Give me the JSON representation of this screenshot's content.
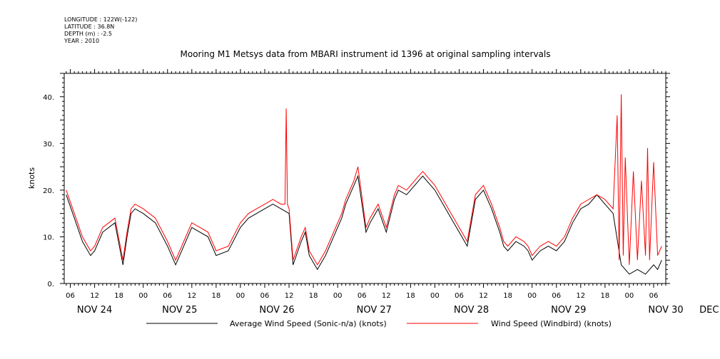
{
  "meta": {
    "longitude": "LONGITUDE : 122W(-122)",
    "latitude": "LATITUDE : 36.8N",
    "depth": "DEPTH (m) : -2.5",
    "year": "YEAR : 2010"
  },
  "chart_data": {
    "type": "line",
    "title": "Mooring M1 Metsys data from MBARI instrument id 1396 at original sampling intervals",
    "ylabel": "knots",
    "xlabel": "",
    "ylim": [
      0,
      45
    ],
    "yticks": [
      0,
      10,
      20,
      30,
      40
    ],
    "ytick_labels": [
      "0.",
      "10.",
      "20.",
      "30.",
      "40."
    ],
    "x_unit": "hours since 2010-11-24 00:00 (UTC)",
    "xlim": [
      4.5,
      153
    ],
    "xticks": [
      6,
      12,
      18,
      24,
      30,
      36,
      42,
      48,
      54,
      60,
      66,
      72,
      78,
      84,
      90,
      96,
      102,
      108,
      114,
      120,
      126,
      132,
      138,
      144,
      150
    ],
    "xtick_labels": [
      "06",
      "12",
      "18",
      "00",
      "06",
      "12",
      "18",
      "00",
      "06",
      "12",
      "18",
      "00",
      "06",
      "12",
      "18",
      "00",
      "06",
      "12",
      "18",
      "00",
      "06",
      "12",
      "18",
      "00",
      "06"
    ],
    "day_labels": [
      {
        "text": "NOV 24",
        "x": 12
      },
      {
        "text": "NOV 25",
        "x": 33
      },
      {
        "text": "NOV 26",
        "x": 57
      },
      {
        "text": "NOV 27",
        "x": 81
      },
      {
        "text": "NOV 28",
        "x": 105
      },
      {
        "text": "NOV 29",
        "x": 129
      },
      {
        "text": "NOV 30",
        "x": 153
      },
      {
        "text": "DEC  1",
        "x": 168
      }
    ],
    "grid": false,
    "legend": "bottom",
    "series": [
      {
        "name": "Average Wind Speed (Sonic-n/a) (knots)",
        "color": "#000000",
        "x": [
          5,
          7,
          9,
          11,
          12,
          14,
          17,
          19,
          20,
          21,
          22,
          24,
          27,
          30,
          32,
          34,
          36,
          38,
          40,
          42,
          45,
          48,
          50,
          52,
          54,
          56,
          58,
          60,
          61,
          63,
          64,
          65,
          67,
          69,
          71,
          73,
          74,
          76,
          77,
          79,
          80,
          82,
          84,
          86,
          87,
          89,
          90,
          92,
          93,
          94,
          96,
          98,
          100,
          102,
          104,
          106,
          108,
          110,
          112,
          113,
          114,
          116,
          118,
          119,
          120,
          122,
          124,
          126,
          128,
          130,
          132,
          134,
          136,
          138,
          140,
          142,
          144,
          146,
          148,
          149,
          150,
          151,
          152
        ],
        "values": [
          19,
          14,
          9,
          6,
          7,
          11,
          13,
          4,
          10,
          15,
          16,
          15,
          13,
          8,
          4,
          8,
          12,
          11,
          10,
          6,
          7,
          12,
          14,
          15,
          16,
          17,
          16,
          15,
          4,
          9,
          11,
          6,
          3,
          6,
          10,
          14,
          17,
          21,
          23,
          11,
          13,
          16,
          11,
          18,
          20,
          19,
          20,
          22,
          23,
          22,
          20,
          17,
          14,
          11,
          8,
          18,
          20,
          16,
          11,
          8,
          7,
          9,
          8,
          7,
          5,
          7,
          8,
          7,
          9,
          13,
          16,
          17,
          19,
          17,
          15,
          4,
          2,
          3,
          2,
          3,
          4,
          3,
          5
        ]
      },
      {
        "name": "Wind Speed (Windbird) (knots)",
        "color": "#ff0000",
        "x": [
          5,
          7,
          9,
          11,
          12,
          14,
          17,
          19,
          20,
          21,
          22,
          24,
          27,
          30,
          32,
          34,
          36,
          38,
          40,
          42,
          45,
          48,
          50,
          52,
          54,
          56,
          58,
          59,
          59.3,
          59.6,
          60,
          61,
          63,
          64,
          65,
          67,
          69,
          71,
          73,
          74,
          76,
          77,
          79,
          80,
          82,
          84,
          86,
          87,
          89,
          90,
          92,
          93,
          94,
          96,
          98,
          100,
          102,
          104,
          106,
          108,
          110,
          112,
          113,
          114,
          116,
          118,
          119,
          120,
          122,
          124,
          126,
          128,
          130,
          132,
          134,
          136,
          138,
          140,
          141,
          141.5,
          142,
          142.5,
          143,
          144,
          145,
          146,
          147,
          148,
          148.5,
          149,
          150,
          151,
          152
        ],
        "values": [
          20,
          15,
          10,
          7,
          8,
          12,
          14,
          5,
          11,
          16,
          17,
          16,
          14,
          9,
          5,
          9,
          13,
          12,
          11,
          7,
          8,
          13,
          15,
          16,
          17,
          18,
          17,
          17,
          37.5,
          17,
          16,
          5,
          10,
          12,
          7,
          4,
          7,
          11,
          15,
          18,
          22,
          25,
          12,
          14,
          17,
          12,
          19,
          21,
          20,
          21,
          23,
          24,
          23,
          21,
          18,
          15,
          12,
          9,
          19,
          21,
          17,
          12,
          9,
          8,
          10,
          9,
          8,
          6,
          8,
          9,
          8,
          10,
          14,
          17,
          18,
          19,
          18,
          16,
          36,
          5,
          40.5,
          6,
          27,
          4,
          24,
          5,
          22,
          6,
          29,
          5,
          26,
          6,
          8
        ]
      }
    ]
  },
  "legend": {
    "series_1": "Average Wind Speed (Sonic-n/a) (knots)",
    "series_2": "Wind Speed (Windbird) (knots)"
  }
}
